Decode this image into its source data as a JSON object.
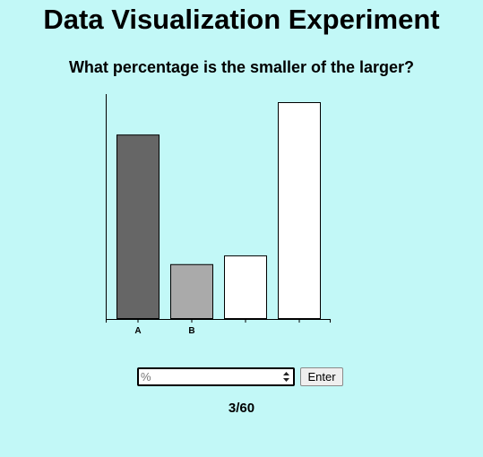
{
  "page": {
    "title": "Data Visualization Experiment",
    "question": "What percentage is the smaller of the larger?",
    "progress": "3/60"
  },
  "answer": {
    "placeholder": "%",
    "value": ""
  },
  "enter_button": {
    "label": "Enter"
  },
  "chart_data": {
    "type": "bar",
    "categories": [
      "A",
      "B",
      "",
      ""
    ],
    "values": [
      85,
      25,
      29,
      100
    ],
    "bar_colors": [
      "#666666",
      "#aaaaaa",
      "#ffffff",
      "#ffffff"
    ],
    "title": "",
    "xlabel": "",
    "ylabel": "",
    "ylim": [
      0,
      100
    ],
    "grid": false,
    "legend": "none"
  }
}
